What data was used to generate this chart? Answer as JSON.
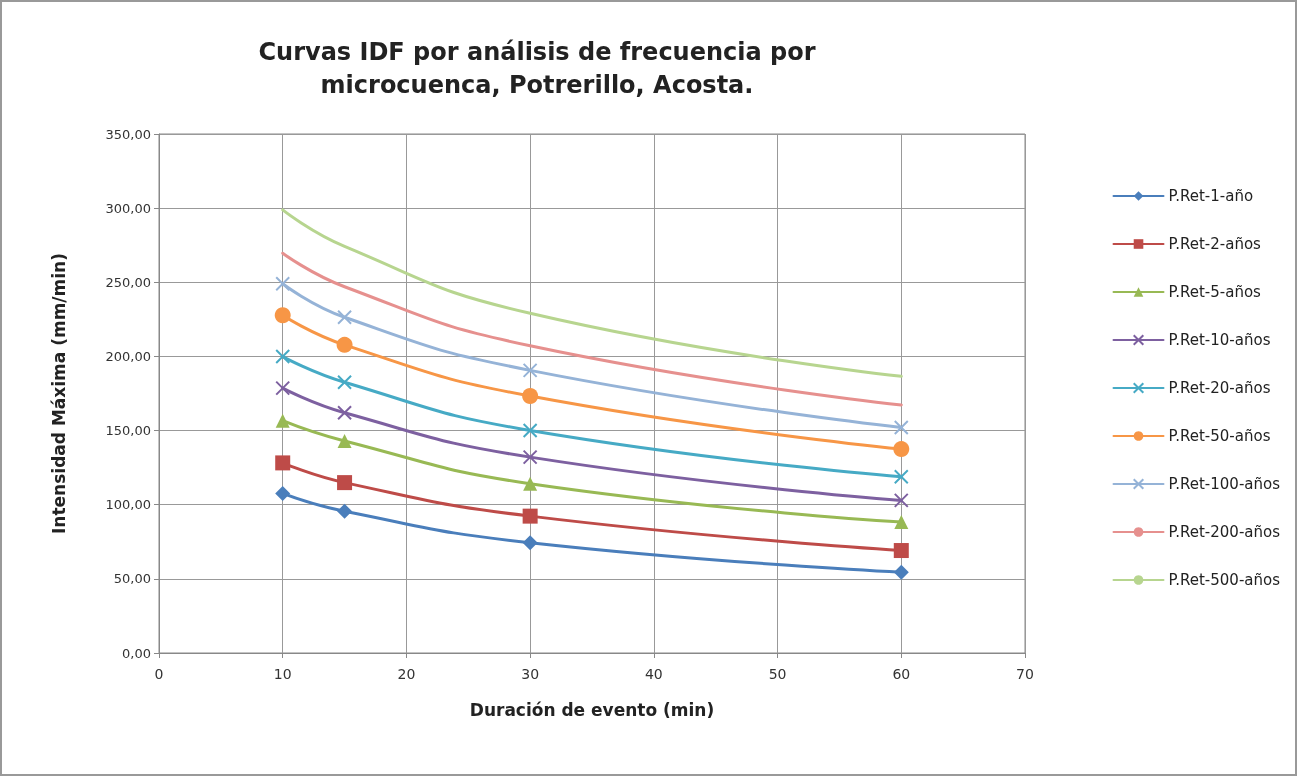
{
  "chart_data": {
    "type": "line",
    "title": "Curvas IDF por análisis de frecuencia por\nmicrocuenca, Potrerillo, Acosta.",
    "xlabel": "Duración de evento (min)",
    "ylabel": "Intensidad Máxima (mm/min)",
    "x": [
      10,
      15,
      30,
      60
    ],
    "xlim": [
      0,
      70
    ],
    "xticks": [
      0,
      10,
      20,
      30,
      40,
      50,
      60,
      70
    ],
    "ylim": [
      0,
      350
    ],
    "yticks": [
      {
        "value": 0,
        "label": "0,00"
      },
      {
        "value": 50,
        "label": "50,00"
      },
      {
        "value": 100,
        "label": "100,00"
      },
      {
        "value": 150,
        "label": "150,00"
      },
      {
        "value": 200,
        "label": "200,00"
      },
      {
        "value": 250,
        "label": "250,00"
      },
      {
        "value": 300,
        "label": "300,00"
      },
      {
        "value": 350,
        "label": "350,00"
      }
    ],
    "grid": true,
    "legend": "right",
    "line_style": "solid",
    "series": [
      {
        "name": "P.Ret-1-año",
        "color": "#4a7ebb",
        "marker": "diamond",
        "values": [
          107.6,
          95.6,
          74.4,
          54.4
        ]
      },
      {
        "name": "P.Ret-2-años",
        "color": "#be4b48",
        "marker": "square",
        "values": [
          128.2,
          114.9,
          92.3,
          69.1
        ]
      },
      {
        "name": "P.Ret-5-años",
        "color": "#98b954",
        "marker": "triangle",
        "values": [
          156.7,
          143,
          114.2,
          88.3
        ]
      },
      {
        "name": "P.Ret-10-años",
        "color": "#7d60a0",
        "marker": "cross",
        "values": [
          178.6,
          162,
          132.1,
          102.9
        ]
      },
      {
        "name": "P.Ret-20-años",
        "color": "#46aac5",
        "marker": "cross",
        "values": [
          199.9,
          182.6,
          150.1,
          118.9
        ]
      },
      {
        "name": "P.Ret-50-años",
        "color": "#f79646",
        "marker": "circle",
        "values": [
          227.8,
          207.8,
          173.3,
          137.5
        ]
      },
      {
        "name": "P.Ret-100-años",
        "color": "#95b3d7",
        "marker": "cross",
        "values": [
          249,
          226.4,
          190.6,
          152.1
        ]
      },
      {
        "name": "P.Ret-200-años",
        "color": "#e6908e",
        "marker": "none",
        "values": [
          269.6,
          247,
          207.2,
          167.3
        ]
      },
      {
        "name": "P.Ret-500-años",
        "color": "#b7d58f",
        "marker": "none",
        "values": [
          298.8,
          274.2,
          229.1,
          186.6
        ]
      }
    ]
  }
}
